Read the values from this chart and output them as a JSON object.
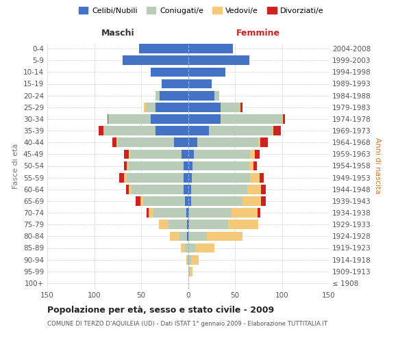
{
  "age_groups": [
    "100+",
    "95-99",
    "90-94",
    "85-89",
    "80-84",
    "75-79",
    "70-74",
    "65-69",
    "60-64",
    "55-59",
    "50-54",
    "45-49",
    "40-44",
    "35-39",
    "30-34",
    "25-29",
    "20-24",
    "15-19",
    "10-14",
    "5-9",
    "0-4"
  ],
  "birth_years": [
    "≤ 1908",
    "1909-1913",
    "1914-1918",
    "1919-1923",
    "1924-1928",
    "1929-1933",
    "1934-1938",
    "1939-1943",
    "1944-1948",
    "1949-1953",
    "1954-1958",
    "1959-1963",
    "1964-1968",
    "1969-1973",
    "1974-1978",
    "1979-1983",
    "1984-1988",
    "1989-1993",
    "1994-1998",
    "1999-2003",
    "2004-2008"
  ],
  "colors": {
    "celibi": "#4472C4",
    "coniugati": "#B8CCB8",
    "vedovi": "#F5C97A",
    "divorziati": "#CC2222"
  },
  "legend_labels": [
    "Celibi/Nubili",
    "Coniugati/e",
    "Vedovi/e",
    "Divorziati/e"
  ],
  "maschi": {
    "celibi": [
      0,
      0,
      0,
      0,
      1,
      1,
      2,
      3,
      5,
      5,
      5,
      7,
      15,
      35,
      40,
      35,
      30,
      28,
      40,
      70,
      52
    ],
    "coniugati": [
      0,
      0,
      1,
      3,
      8,
      20,
      35,
      45,
      55,
      60,
      58,
      55,
      60,
      55,
      45,
      10,
      5,
      0,
      0,
      0,
      0
    ],
    "vedovi": [
      0,
      0,
      1,
      5,
      10,
      10,
      5,
      3,
      3,
      3,
      2,
      1,
      1,
      0,
      0,
      2,
      0,
      0,
      0,
      0,
      0
    ],
    "divorziati": [
      0,
      0,
      0,
      0,
      0,
      0,
      2,
      5,
      3,
      5,
      3,
      5,
      5,
      5,
      1,
      0,
      0,
      0,
      0,
      0,
      0
    ]
  },
  "femmine": {
    "nubili": [
      0,
      0,
      0,
      0,
      0,
      1,
      1,
      3,
      3,
      4,
      5,
      6,
      10,
      22,
      35,
      35,
      28,
      25,
      40,
      65,
      48
    ],
    "coniugate": [
      0,
      2,
      3,
      8,
      20,
      42,
      45,
      55,
      60,
      62,
      60,
      60,
      65,
      68,
      65,
      20,
      5,
      0,
      0,
      0,
      0
    ],
    "vedove": [
      0,
      3,
      8,
      20,
      38,
      32,
      28,
      20,
      15,
      10,
      5,
      5,
      2,
      1,
      1,
      1,
      0,
      0,
      0,
      0,
      0
    ],
    "divorziate": [
      0,
      0,
      0,
      0,
      0,
      0,
      3,
      5,
      5,
      5,
      3,
      5,
      8,
      8,
      2,
      2,
      0,
      0,
      0,
      0,
      0
    ]
  },
  "title": "Popolazione per età, sesso e stato civile - 2009",
  "subtitle": "COMUNE DI TERZO D'AQUILEIA (UD) - Dati ISTAT 1° gennaio 2009 - Elaborazione TUTTITALIA.IT",
  "xlabel_maschi": "Maschi",
  "xlabel_femmine": "Femmine",
  "ylabel_left": "Fasce di età",
  "ylabel_right": "Anni di nascita",
  "xlim": 150,
  "bg_color": "#FFFFFF",
  "grid_color": "#CCCCCC",
  "bar_height": 0.8
}
